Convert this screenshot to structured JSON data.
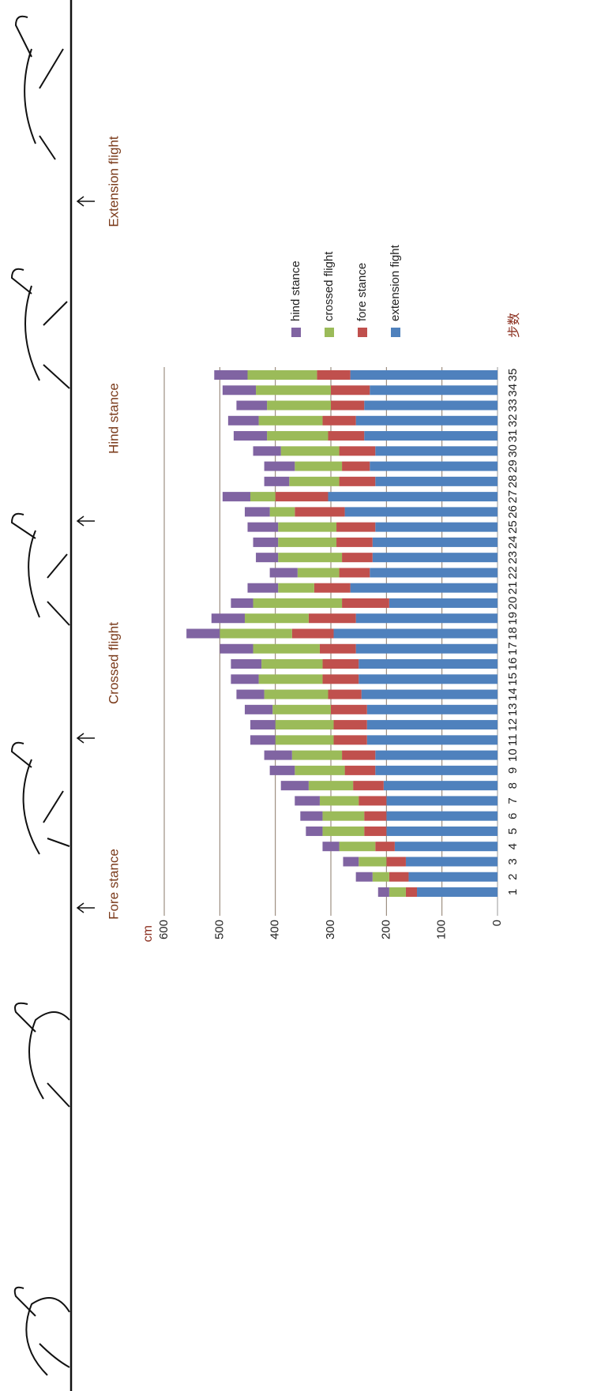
{
  "chart_data": {
    "type": "stacked_bar",
    "y_label": "cm",
    "x_label": "步数",
    "annotations": [
      "Fore stance",
      "Crossed flight",
      "Hind stance",
      "Extension flight"
    ],
    "categories": [
      "1",
      "2",
      "3",
      "4",
      "5",
      "6",
      "7",
      "8",
      "9",
      "10",
      "11",
      "12",
      "13",
      "14",
      "15",
      "16",
      "17",
      "18",
      "19",
      "20",
      "21",
      "22",
      "23",
      "24",
      "25",
      "26",
      "27",
      "28",
      "29",
      "30",
      "31",
      "32",
      "33",
      "34",
      "35"
    ],
    "series": [
      {
        "name": "extension fight",
        "color": "#4f81bd",
        "values": [
          145,
          160,
          165,
          185,
          200,
          200,
          200,
          205,
          220,
          220,
          235,
          235,
          235,
          245,
          250,
          250,
          255,
          295,
          255,
          195,
          265,
          230,
          225,
          225,
          220,
          275,
          305,
          220,
          230,
          220,
          240,
          255,
          240,
          230,
          265
        ]
      },
      {
        "name": "fore stance",
        "color": "#c0504d",
        "values": [
          20,
          35,
          35,
          35,
          40,
          40,
          50,
          55,
          55,
          60,
          60,
          60,
          65,
          60,
          65,
          65,
          65,
          75,
          85,
          85,
          65,
          55,
          55,
          65,
          70,
          90,
          95,
          65,
          50,
          65,
          65,
          60,
          60,
          70,
          60
        ]
      },
      {
        "name": "crossed flight",
        "color": "#9bbb59",
        "values": [
          30,
          30,
          50,
          65,
          75,
          75,
          70,
          80,
          90,
          90,
          105,
          105,
          105,
          115,
          115,
          110,
          120,
          130,
          115,
          160,
          65,
          75,
          115,
          105,
          105,
          45,
          45,
          90,
          85,
          105,
          110,
          115,
          115,
          135,
          125
        ]
      },
      {
        "name": "hind stance",
        "color": "#8064a2",
        "values": [
          20,
          30,
          28,
          30,
          30,
          40,
          45,
          50,
          45,
          50,
          45,
          45,
          50,
          50,
          50,
          55,
          60,
          60,
          60,
          40,
          55,
          50,
          40,
          45,
          55,
          45,
          50,
          45,
          55,
          50,
          60,
          55,
          55,
          60,
          60
        ]
      }
    ],
    "ylim": [
      0,
      600
    ],
    "yticks": [
      0,
      100,
      200,
      300,
      400,
      500,
      600
    ],
    "grid": true
  }
}
